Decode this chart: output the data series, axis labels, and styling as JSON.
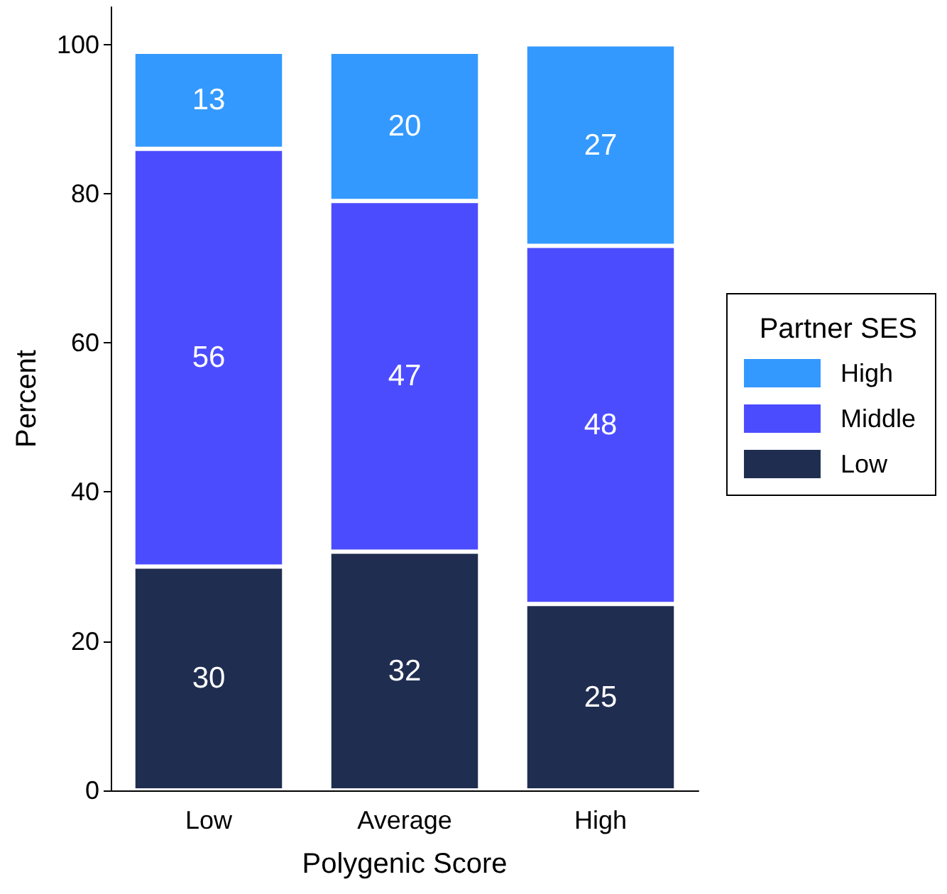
{
  "chart_data": {
    "type": "bar",
    "stacked": true,
    "xlabel": "Polygenic Score",
    "ylabel": "Percent",
    "legend_title": "Partner SES",
    "categories": [
      "Low",
      "Average",
      "High"
    ],
    "series": [
      {
        "name": "Low",
        "color": "#1f2d50",
        "values": [
          30,
          32,
          25
        ]
      },
      {
        "name": "Middle",
        "color": "#4c4cff",
        "values": [
          56,
          47,
          48
        ]
      },
      {
        "name": "High",
        "color": "#3399ff",
        "values": [
          13,
          20,
          27
        ]
      }
    ],
    "ylim": [
      0,
      105
    ],
    "yticks": [
      0,
      20,
      40,
      60,
      80,
      100
    ],
    "grid": false,
    "legend": "right",
    "data_labels": true
  }
}
